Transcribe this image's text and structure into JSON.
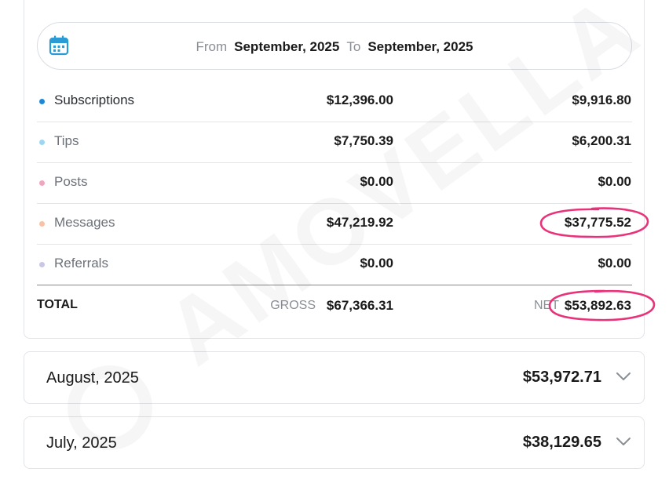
{
  "date_range": {
    "from_label": "From",
    "from_value": "September, 2025",
    "to_label": "To",
    "to_value": "September, 2025",
    "icon": "calendar-icon"
  },
  "rows": [
    {
      "label": "Subscriptions",
      "gross": "$12,396.00",
      "net": "$9,916.80",
      "dot_color": "#1e88d6"
    },
    {
      "label": "Tips",
      "gross": "$7,750.39",
      "net": "$6,200.31",
      "dot_color": "#9dd6f0"
    },
    {
      "label": "Posts",
      "gross": "$0.00",
      "net": "$0.00",
      "dot_color": "#f1a6c0"
    },
    {
      "label": "Messages",
      "gross": "$47,219.92",
      "net": "$37,775.52",
      "dot_color": "#f7c2a6"
    },
    {
      "label": "Referrals",
      "gross": "$0.00",
      "net": "$0.00",
      "dot_color": "#c9c6e6"
    }
  ],
  "total": {
    "label": "TOTAL",
    "gross_label": "GROSS",
    "gross": "$67,366.31",
    "net_label": "NET",
    "net": "$53,892.63"
  },
  "months": [
    {
      "label": "August, 2025",
      "amount": "$53,972.71"
    },
    {
      "label": "July, 2025",
      "amount": "$38,129.65"
    }
  ],
  "watermark": "AMOVELLA",
  "colors": {
    "highlight": "#e8327a",
    "divider_accent": "#3aa7b8",
    "calendar": "#2b9bd6"
  }
}
